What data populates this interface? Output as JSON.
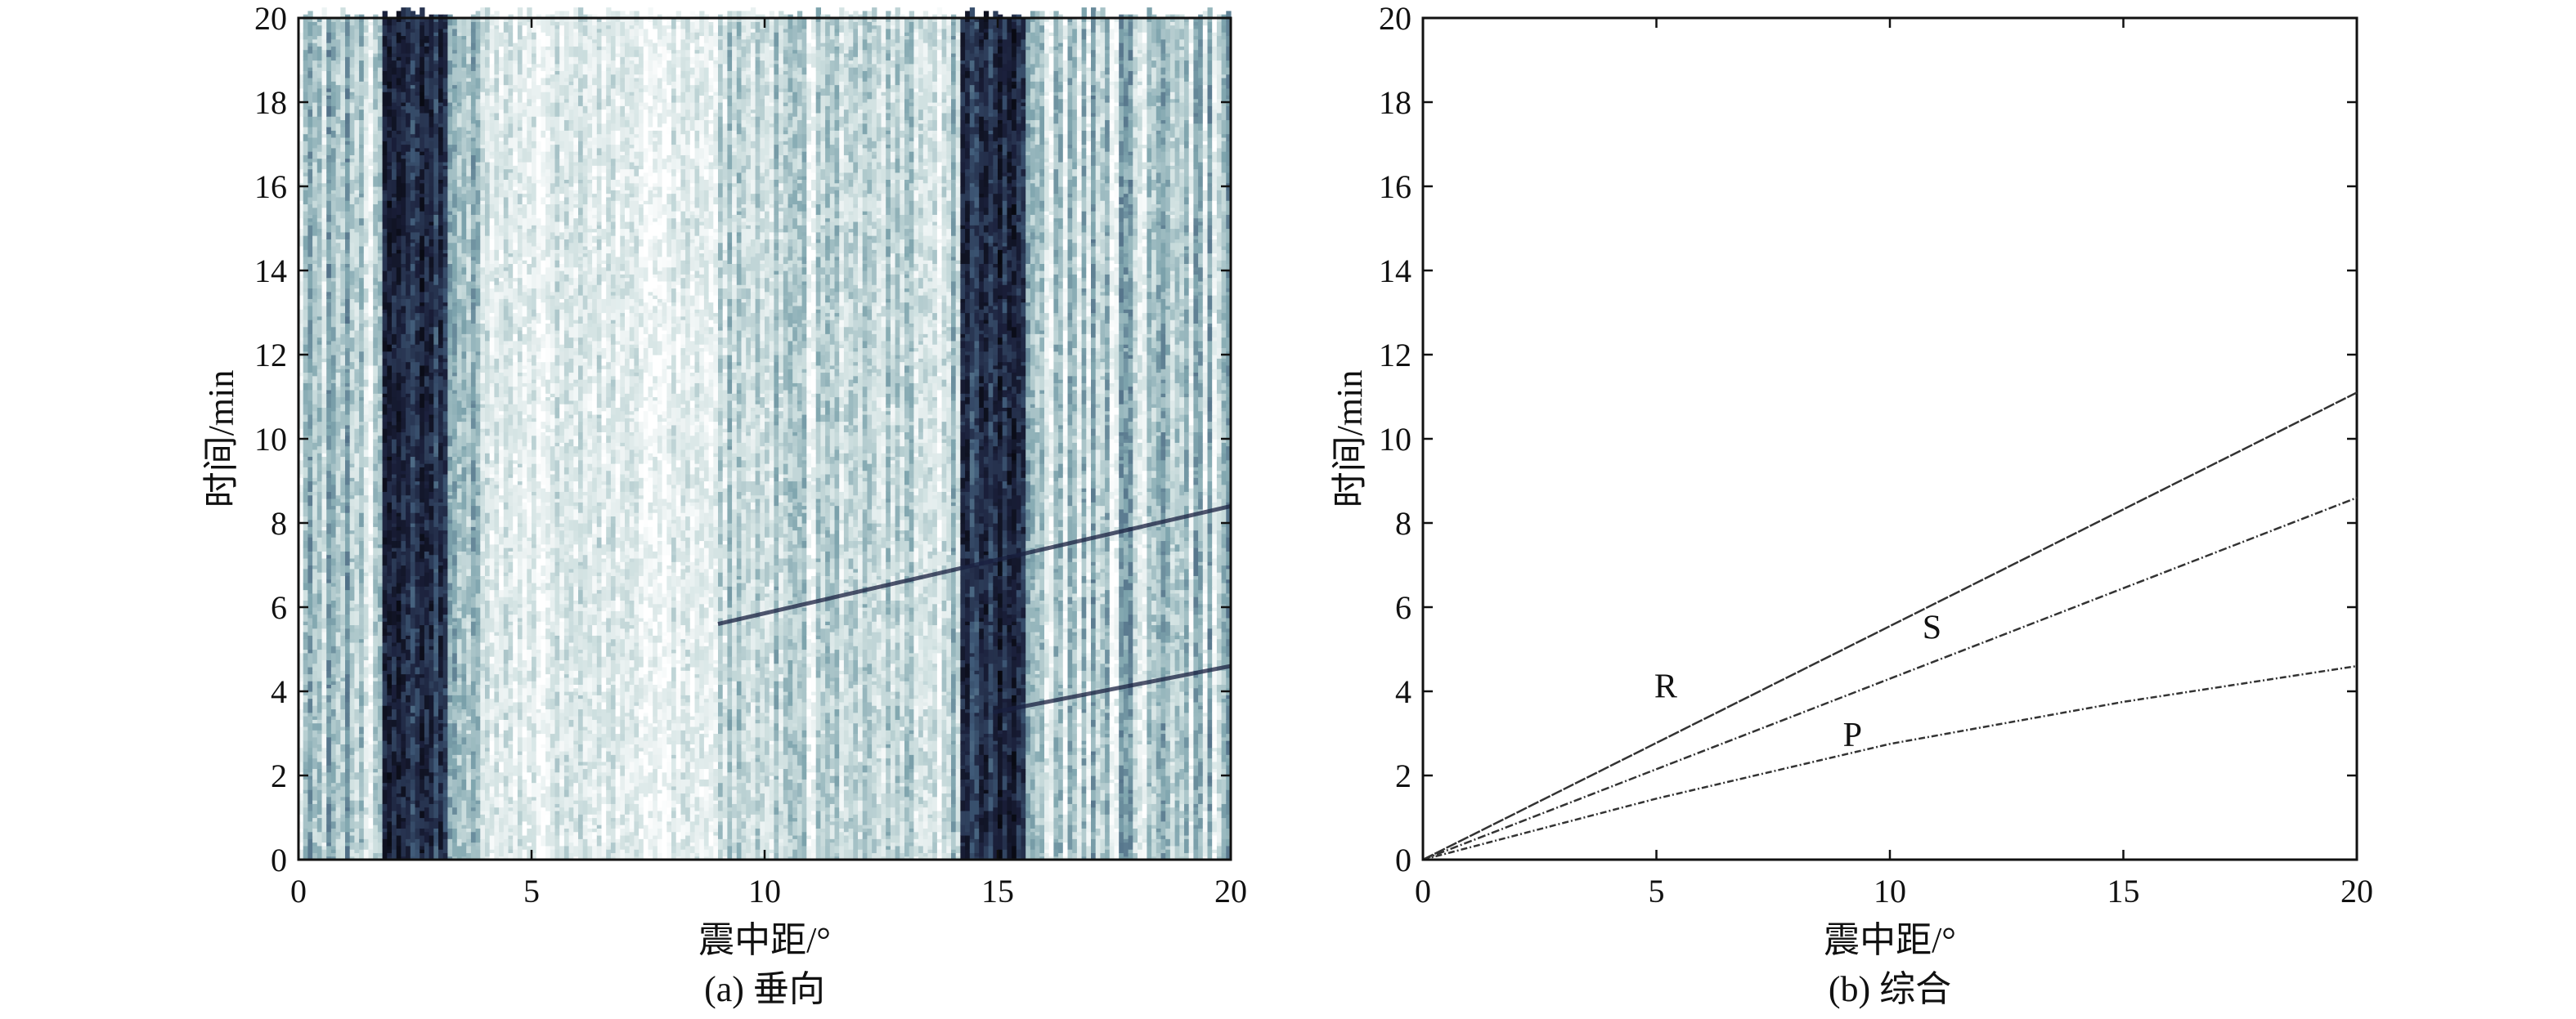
{
  "chart_data": [
    {
      "type": "heatmap",
      "panel": "a",
      "caption": "(a) 垂向",
      "xlabel": "震中距/°",
      "ylabel": "时间/min",
      "xlim": [
        0,
        20
      ],
      "ylim": [
        0,
        20
      ],
      "xticks": [
        "0",
        "5",
        "10",
        "15",
        "20"
      ],
      "yticks": [
        "0",
        "2",
        "4",
        "6",
        "8",
        "10",
        "12",
        "14",
        "16",
        "18",
        "20"
      ],
      "colormap": [
        "#ffffff",
        "#cfe0e0",
        "#7fa5ae",
        "#3f5a78",
        "#1a1f3a",
        "#000000"
      ],
      "strong_bands_deg": [
        [
          1.8,
          3.2
        ],
        [
          14.2,
          15.6
        ]
      ],
      "arrivals": [
        {
          "from": [
            14.9,
            3.5
          ],
          "to": [
            20,
            4.6
          ]
        },
        {
          "from": [
            9,
            5.6
          ],
          "to": [
            20,
            8.4
          ]
        }
      ]
    },
    {
      "type": "line",
      "panel": "b",
      "caption": "(b) 综合",
      "xlabel": "震中距/°",
      "ylabel": "时间/min",
      "xlim": [
        0,
        20
      ],
      "ylim": [
        0,
        20
      ],
      "xticks": [
        "0",
        "5",
        "10",
        "15",
        "20"
      ],
      "yticks": [
        "0",
        "2",
        "4",
        "6",
        "8",
        "10",
        "12",
        "14",
        "16",
        "18",
        "20"
      ],
      "series": [
        {
          "name": "R",
          "x": [
            0,
            20
          ],
          "y": [
            0,
            11.1
          ],
          "label_at": [
            5.2,
            3.85
          ]
        },
        {
          "name": "S",
          "x": [
            0,
            20
          ],
          "y": [
            0,
            8.6
          ],
          "label_at": [
            10.9,
            5.25
          ]
        },
        {
          "name": "P",
          "x": [
            0,
            5,
            10,
            15,
            20
          ],
          "y": [
            0,
            1.45,
            2.75,
            3.75,
            4.6
          ],
          "label_at": [
            9.2,
            2.7
          ]
        }
      ]
    }
  ]
}
